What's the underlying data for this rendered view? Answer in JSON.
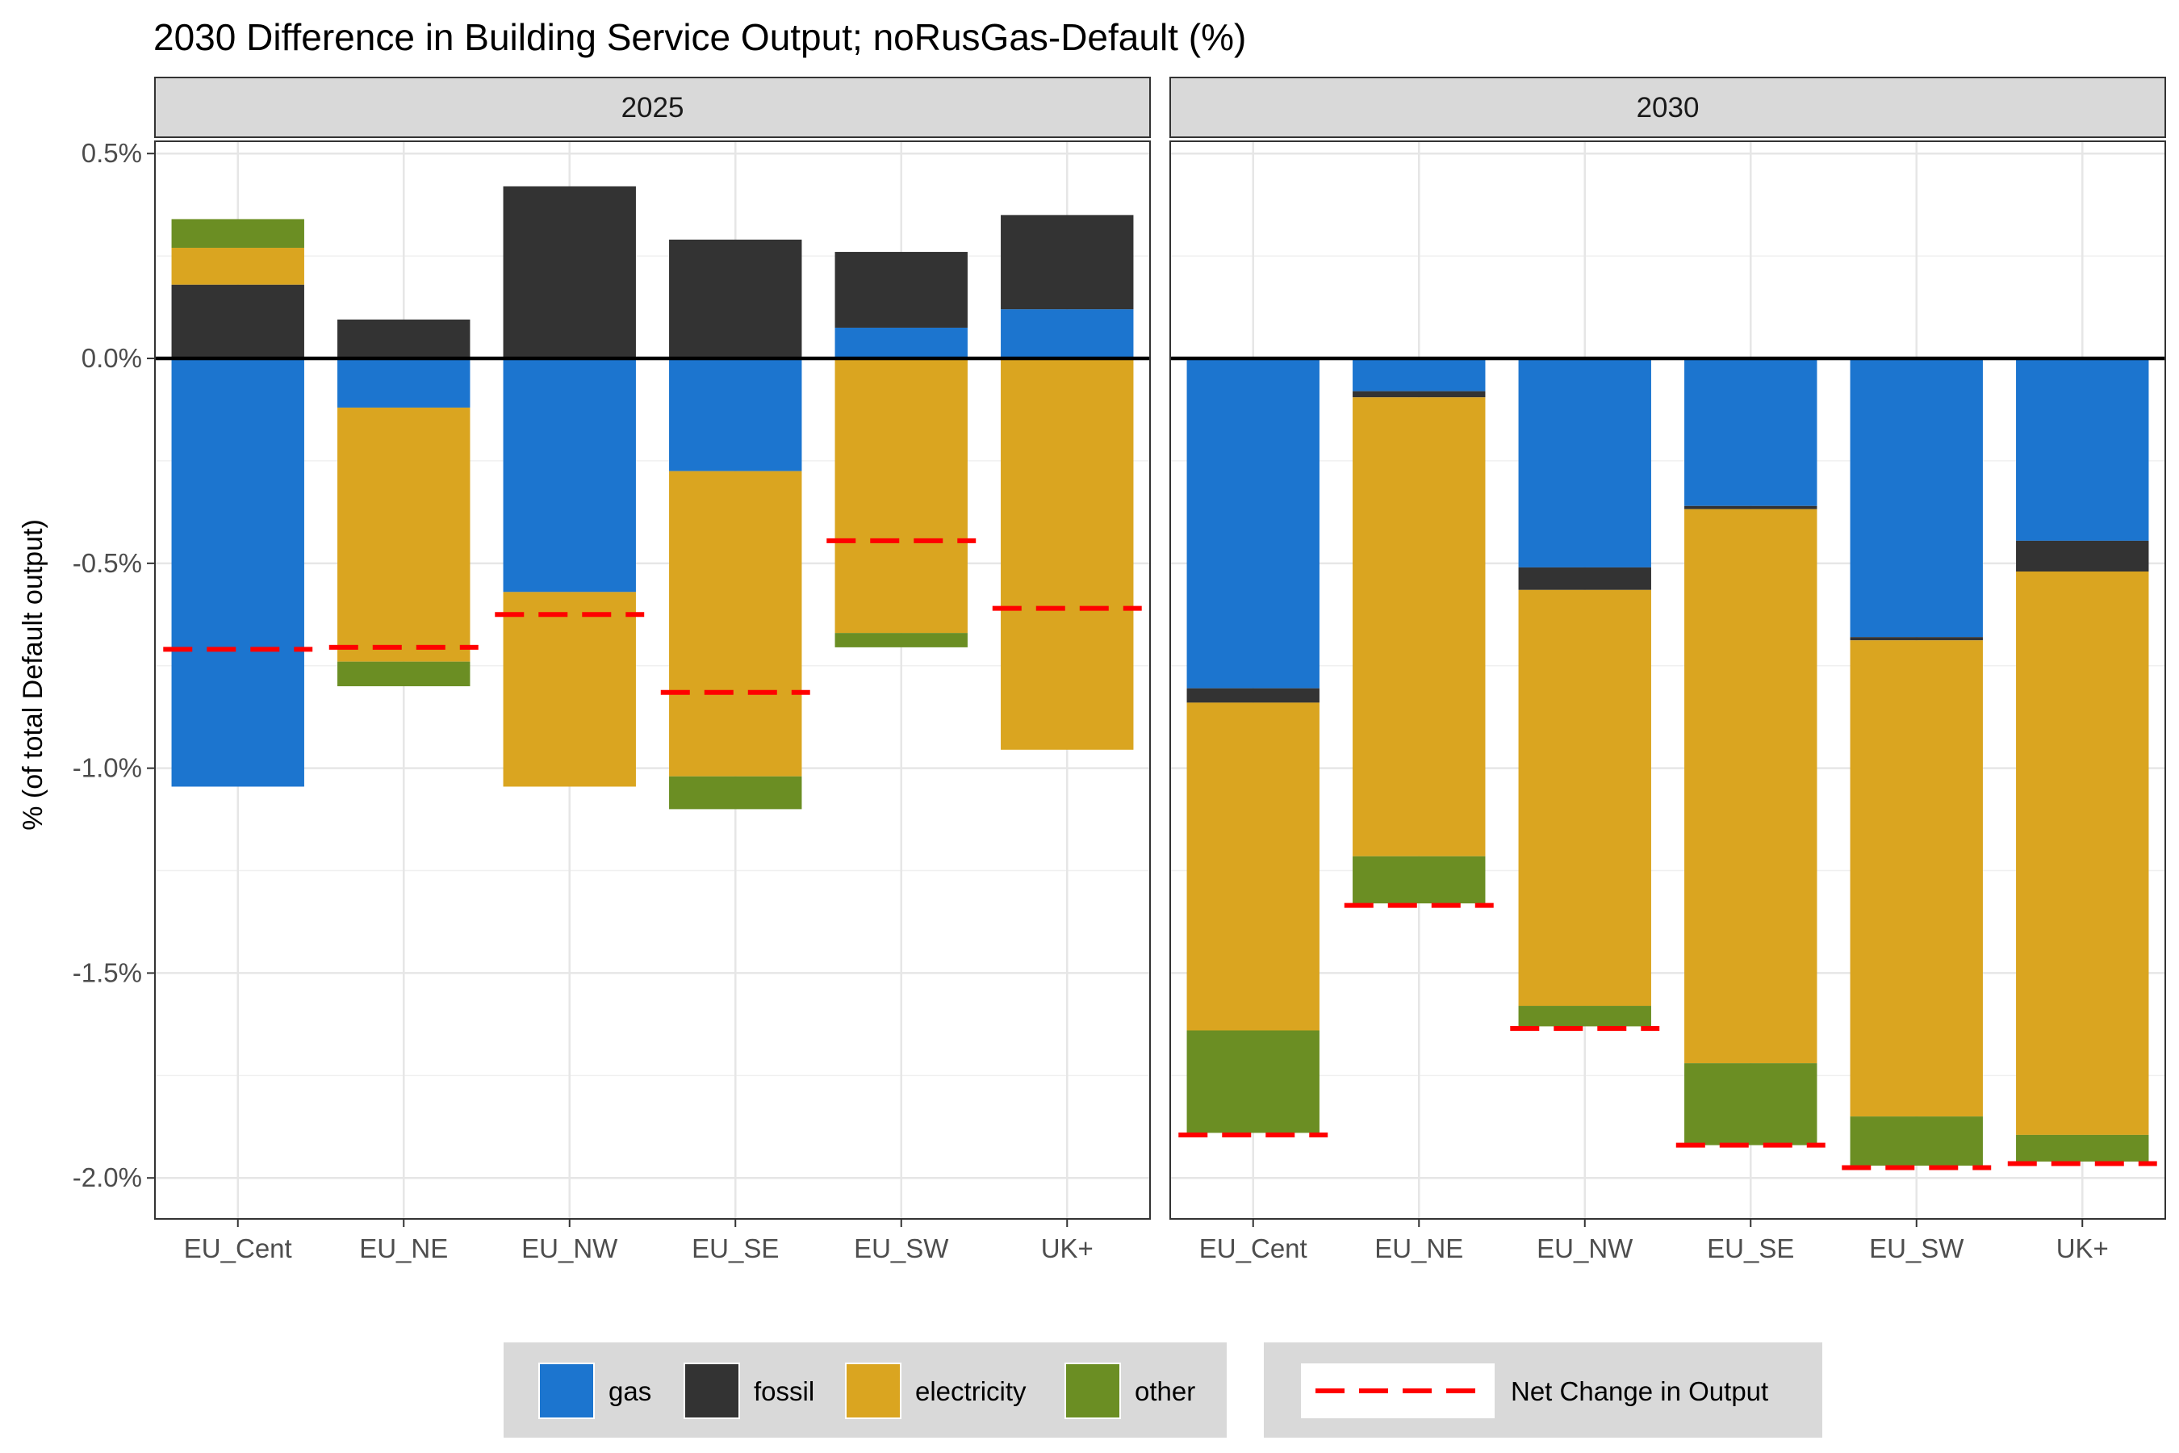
{
  "chart_data": {
    "type": "bar",
    "title": "2030 Difference in Building Service Output; noRusGas-Default (%)",
    "xlabel": "",
    "ylabel": "% (of total Default output)",
    "ylim": [
      -2.1,
      0.53
    ],
    "yticks": [
      0.5,
      0.0,
      -0.5,
      -1.0,
      -1.5,
      -2.0
    ],
    "ytick_labels": [
      "0.5%",
      "0.0%",
      "-0.5%",
      "-1.0%",
      "-1.5%",
      "-2.0%"
    ],
    "categories": [
      "EU_Cent",
      "EU_NE",
      "EU_NW",
      "EU_SE",
      "EU_SW",
      "UK+"
    ],
    "grid": true,
    "legend_position": "bottom",
    "colors": {
      "gas": "#1c75cf",
      "fossil": "#333333",
      "electricity": "#daa520",
      "other": "#6b8e23",
      "net": "#ff0000",
      "strip_fill": "#d9d9d9",
      "legend_fill": "#d9d9d9"
    },
    "legend": {
      "fill_items": [
        {
          "key": "gas",
          "label": "gas"
        },
        {
          "key": "fossil",
          "label": "fossil"
        },
        {
          "key": "electricity",
          "label": "electricity"
        },
        {
          "key": "other",
          "label": "other"
        }
      ],
      "line_item": {
        "key": "net",
        "label": "Net Change in Output"
      }
    },
    "panels": [
      {
        "title": "2025",
        "positive": {
          "EU_Cent": [
            {
              "key": "fossil",
              "value": 0.18
            },
            {
              "key": "electricity",
              "value": 0.09
            },
            {
              "key": "other",
              "value": 0.07
            }
          ],
          "EU_NE": [
            {
              "key": "fossil",
              "value": 0.095
            }
          ],
          "EU_NW": [
            {
              "key": "fossil",
              "value": 0.42
            }
          ],
          "EU_SE": [
            {
              "key": "fossil",
              "value": 0.29
            }
          ],
          "EU_SW": [
            {
              "key": "gas",
              "value": 0.075
            },
            {
              "key": "fossil",
              "value": 0.185
            }
          ],
          "UK+": [
            {
              "key": "gas",
              "value": 0.12
            },
            {
              "key": "fossil",
              "value": 0.23
            }
          ]
        },
        "negative": {
          "EU_Cent": [
            {
              "key": "gas",
              "value": -1.045
            }
          ],
          "EU_NE": [
            {
              "key": "gas",
              "value": -0.12
            },
            {
              "key": "electricity",
              "value": -0.62
            },
            {
              "key": "other",
              "value": -0.06
            }
          ],
          "EU_NW": [
            {
              "key": "gas",
              "value": -0.57
            },
            {
              "key": "electricity",
              "value": -0.475
            }
          ],
          "EU_SE": [
            {
              "key": "gas",
              "value": -0.275
            },
            {
              "key": "electricity",
              "value": -0.745
            },
            {
              "key": "other",
              "value": -0.08
            }
          ],
          "EU_SW": [
            {
              "key": "electricity",
              "value": -0.67
            },
            {
              "key": "other",
              "value": -0.035
            }
          ],
          "UK+": [
            {
              "key": "electricity",
              "value": -0.955
            }
          ]
        },
        "net": {
          "EU_Cent": -0.71,
          "EU_NE": -0.705,
          "EU_NW": -0.625,
          "EU_SE": -0.815,
          "EU_SW": -0.445,
          "UK+": -0.61
        }
      },
      {
        "title": "2030",
        "positive": {},
        "negative": {
          "EU_Cent": [
            {
              "key": "gas",
              "value": -0.805
            },
            {
              "key": "fossil",
              "value": -0.035
            },
            {
              "key": "electricity",
              "value": -0.8
            },
            {
              "key": "other",
              "value": -0.25
            }
          ],
          "EU_NE": [
            {
              "key": "gas",
              "value": -0.08
            },
            {
              "key": "fossil",
              "value": -0.015
            },
            {
              "key": "electricity",
              "value": -1.12
            },
            {
              "key": "other",
              "value": -0.115
            }
          ],
          "EU_NW": [
            {
              "key": "gas",
              "value": -0.51
            },
            {
              "key": "fossil",
              "value": -0.055
            },
            {
              "key": "electricity",
              "value": -1.015
            },
            {
              "key": "other",
              "value": -0.05
            }
          ],
          "EU_SE": [
            {
              "key": "gas",
              "value": -0.36
            },
            {
              "key": "fossil",
              "value": -0.008
            },
            {
              "key": "electricity",
              "value": -1.352
            },
            {
              "key": "other",
              "value": -0.2
            }
          ],
          "EU_SW": [
            {
              "key": "gas",
              "value": -0.68
            },
            {
              "key": "fossil",
              "value": -0.008
            },
            {
              "key": "electricity",
              "value": -1.162
            },
            {
              "key": "other",
              "value": -0.12
            }
          ],
          "UK+": [
            {
              "key": "gas",
              "value": -0.445
            },
            {
              "key": "fossil",
              "value": -0.075
            },
            {
              "key": "electricity",
              "value": -1.375
            },
            {
              "key": "other",
              "value": -0.065
            }
          ]
        },
        "net": {
          "EU_Cent": -1.895,
          "EU_NE": -1.335,
          "EU_NW": -1.635,
          "EU_SE": -1.92,
          "EU_SW": -1.975,
          "UK+": -1.965
        }
      }
    ]
  }
}
